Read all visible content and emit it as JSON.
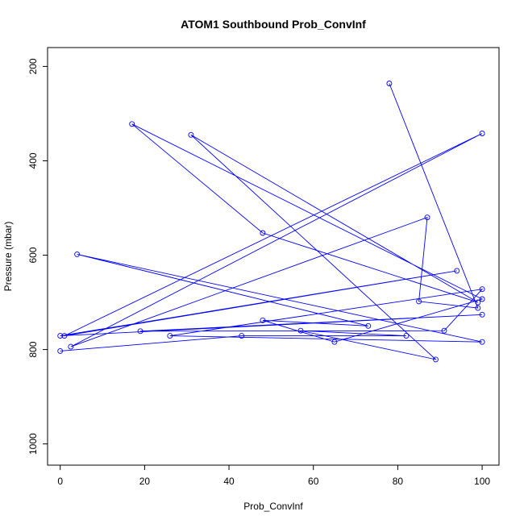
{
  "chart_data": {
    "type": "line",
    "title": "ATOM1 Southbound Prob_ConvInf",
    "xlabel": "Prob_ConvInf",
    "ylabel": "Pressure (mbar)",
    "xlim": [
      -3,
      104
    ],
    "ylim": [
      1045,
      160
    ],
    "y_reversed": true,
    "xticks": [
      0,
      20,
      40,
      60,
      80,
      100
    ],
    "yticks": [
      200,
      400,
      600,
      800,
      1000
    ],
    "grid": false,
    "legend": "none",
    "color": "#0000ff",
    "marker": "open-circle",
    "series": [
      {
        "points": [
          [
            78,
            236
          ],
          [
            99,
            712
          ],
          [
            85,
            698
          ],
          [
            87,
            520
          ],
          [
            2.5,
            794
          ],
          [
            100,
            342
          ],
          [
            1,
            771
          ],
          [
            94,
            633
          ],
          [
            0,
            771
          ],
          [
            100,
            726
          ],
          [
            19,
            761
          ],
          [
            91,
            760
          ],
          [
            100,
            672
          ],
          [
            26,
            771
          ],
          [
            100,
            784
          ],
          [
            4,
            598
          ],
          [
            73,
            750
          ],
          [
            48,
            738
          ],
          [
            65,
            784
          ],
          [
            100,
            693
          ],
          [
            17,
            322
          ],
          [
            48,
            553
          ],
          [
            99,
            700
          ],
          [
            31,
            345
          ],
          [
            89,
            821
          ],
          [
            57,
            760
          ],
          [
            82,
            771
          ],
          [
            43,
            771
          ],
          [
            0,
            803
          ]
        ]
      }
    ]
  }
}
